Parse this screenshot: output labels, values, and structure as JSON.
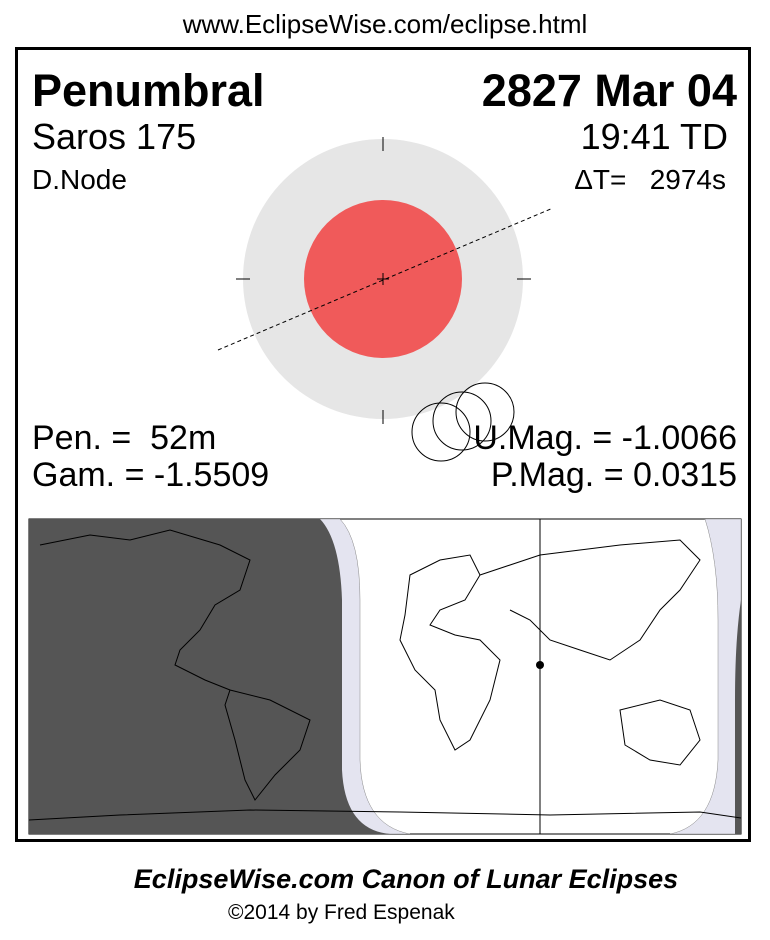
{
  "url": "www.EclipseWise.com/eclipse.html",
  "eclipse_type": "Penumbral",
  "date": "2827 Mar 04",
  "saros": "Saros 175",
  "time": "19:41 TD",
  "node": "D.Node",
  "delta_t": "ΔT=   2974s",
  "pen_duration": "Pen. =  52m",
  "gamma": "Gam. = -1.5509",
  "umbral_mag": "U.Mag. = -1.0066",
  "penumbral_mag": "P.Mag. = 0.0315",
  "footer_title": "EclipseWise.com Canon of Lunar Eclipses",
  "footer_copyright": "©2014 by Fred Espenak",
  "colors": {
    "umbra": "#f05a5a",
    "penumbra": "#e6e6e6",
    "night": "#555555",
    "penumbral_zone": "#e4e4f0"
  }
}
